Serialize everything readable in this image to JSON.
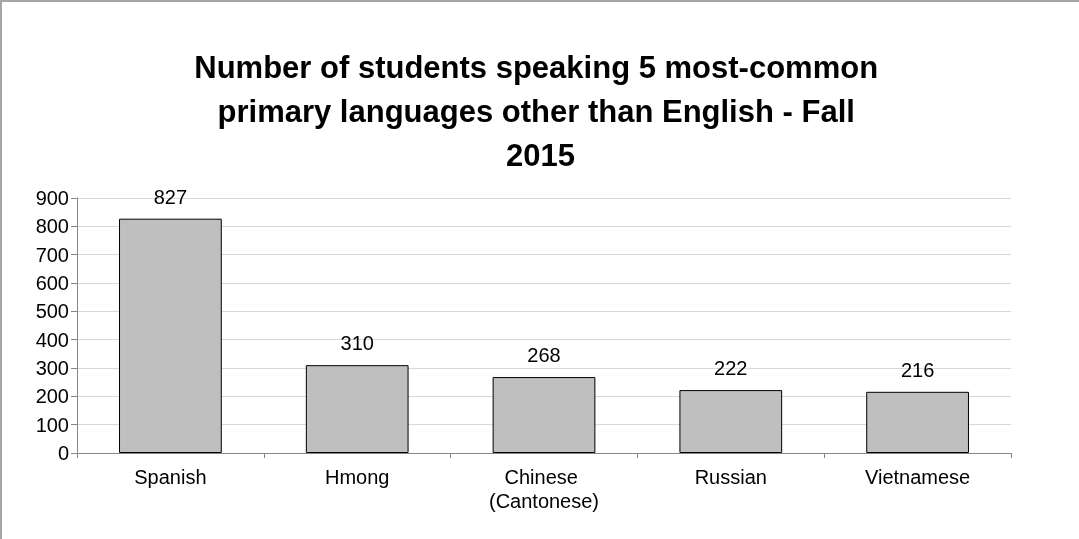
{
  "chart_data": {
    "type": "bar",
    "title": "Number of students speaking 5 most-common primary languages other than English - Fall 2015",
    "categories": [
      "Spanish",
      "Hmong",
      "Chinese (Cantonese)",
      "Russian",
      "Vietnamese"
    ],
    "values": [
      827,
      310,
      268,
      222,
      216
    ],
    "color": "#bfbfbf",
    "ylim": [
      0,
      900
    ],
    "yticks": [
      0,
      100,
      200,
      300,
      400,
      500,
      600,
      700,
      800,
      900
    ],
    "grid": "y",
    "data_labels": true
  }
}
